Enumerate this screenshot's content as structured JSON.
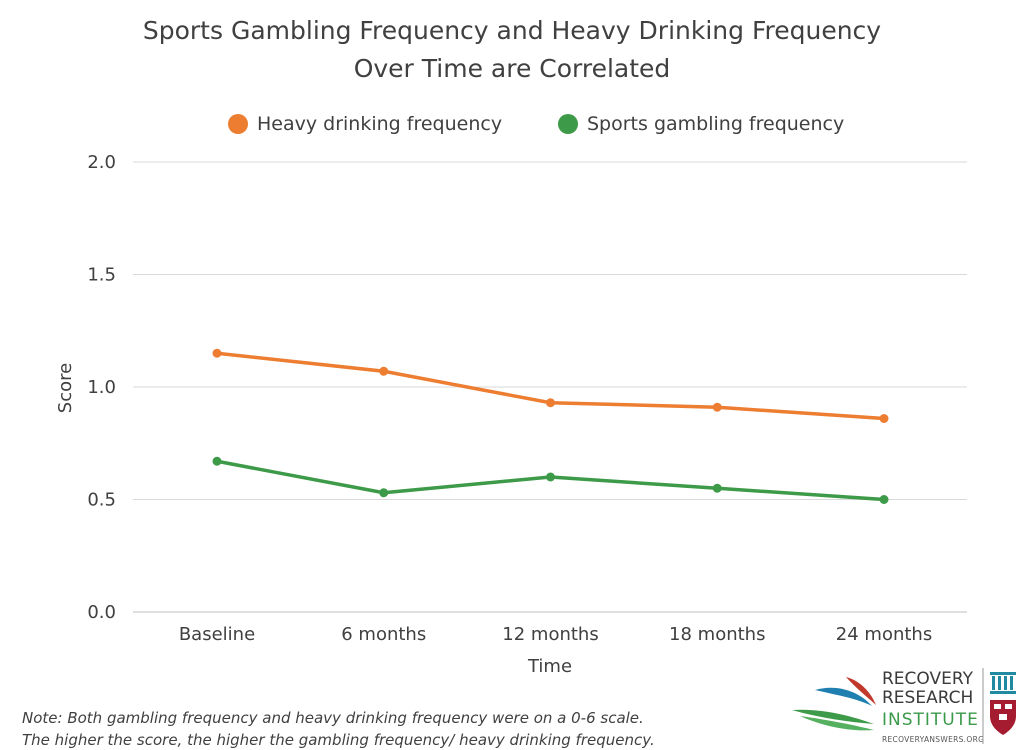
{
  "chart_data": {
    "type": "line",
    "title_lines": [
      "Sports Gambling Frequency and Heavy Drinking Frequency",
      "Over Time are Correlated"
    ],
    "xlabel": "Time",
    "ylabel": "Score",
    "categories": [
      "Baseline",
      "6 months",
      "12 months",
      "18 months",
      "24 months"
    ],
    "ylim": [
      0,
      2
    ],
    "yticks": [
      0,
      0.5,
      1,
      1.5,
      2
    ],
    "ytick_labels": [
      "0.0",
      "0.5",
      "1.0",
      "1.5",
      "2.0"
    ],
    "grid": true,
    "legend_position": "top",
    "series": [
      {
        "name": "Heavy drinking frequency",
        "color": "#ed7d31",
        "values": [
          1.15,
          1.07,
          0.93,
          0.91,
          0.86
        ]
      },
      {
        "name": "Sports gambling frequency",
        "color": "#3d9a48",
        "values": [
          0.67,
          0.53,
          0.6,
          0.55,
          0.5
        ]
      }
    ]
  },
  "note_lines": [
    "Note: Both gambling frequency and heavy drinking frequency were on a 0-6 scale.",
    "The higher the score, the higher the gambling frequency/ heavy drinking frequency."
  ],
  "logo": {
    "line1": "RECOVERY",
    "line2": "RESEARCH",
    "line3": "INSTITUTE",
    "url": "RECOVERYANSWERS.ORG",
    "icon": "harvard-shield-icon"
  }
}
